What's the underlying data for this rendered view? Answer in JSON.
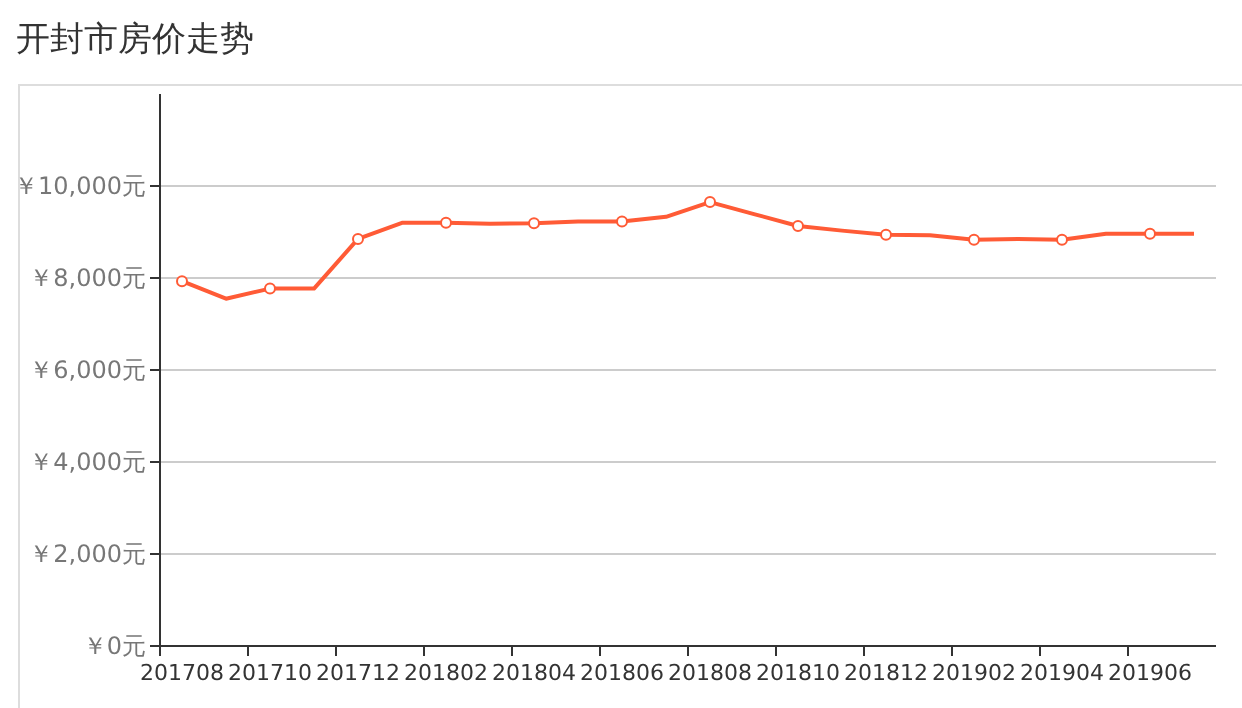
{
  "chart_data": {
    "type": "line",
    "title": "开封市房价走势",
    "categories": [
      "201708",
      null,
      "201710",
      null,
      "201712",
      null,
      "201802",
      null,
      "201804",
      null,
      "201806",
      null,
      "201808",
      null,
      "201810",
      null,
      "201812",
      null,
      "201902",
      null,
      "201904",
      null,
      "201906",
      null
    ],
    "series": [
      {
        "color": "#ff5b36",
        "values": [
          7930,
          7550,
          7770,
          7770,
          8850,
          9200,
          9200,
          9180,
          9190,
          9230,
          9230,
          9330,
          9650,
          9390,
          9130,
          9030,
          8940,
          8930,
          8830,
          8850,
          8830,
          8960,
          8960,
          8960
        ]
      }
    ],
    "ylim": [
      0,
      12000
    ],
    "yticks": [
      {
        "value": 0,
        "label": "￥0元"
      },
      {
        "value": 2000,
        "label": "￥2,000元"
      },
      {
        "value": 4000,
        "label": "￥4,000元"
      },
      {
        "value": 6000,
        "label": "￥6,000元"
      },
      {
        "value": 8000,
        "label": "￥8,000元"
      },
      {
        "value": 10000,
        "label": "￥10,000元"
      }
    ],
    "grid": "y",
    "marker": "circle",
    "line_style": "solid"
  }
}
